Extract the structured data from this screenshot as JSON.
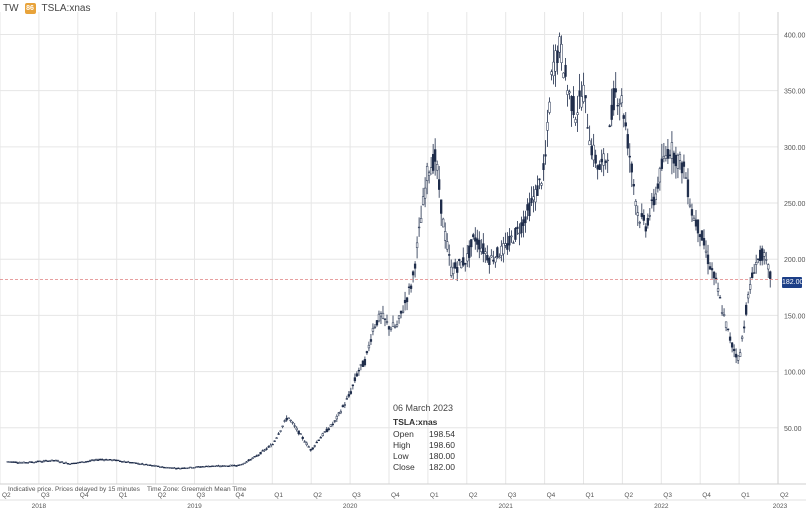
{
  "header": {
    "source": "TW",
    "badge": "86",
    "symbol": "TSLA:xnas"
  },
  "footnote": {
    "delay": "Indicative price. Prices delayed by 15 minutes",
    "timezone": "Time Zone: Greenwich Mean Time"
  },
  "tooltip": {
    "date": "06 March 2023",
    "symbol": "TSLA:xnas",
    "rows": [
      {
        "label": "Open",
        "value": "198.54"
      },
      {
        "label": "High",
        "value": "198.60"
      },
      {
        "label": "Low",
        "value": "180.00"
      },
      {
        "label": "Close",
        "value": "182.00"
      }
    ]
  },
  "last_price": "182.00",
  "colors": {
    "candle": "#1e2c4a",
    "grid": "#e6e6e6",
    "last_line": "#e08080",
    "last_tag": "#1d3f87"
  },
  "chart_data": {
    "type": "candlestick",
    "y_ticks": [
      "400.00",
      "350.00",
      "300.00",
      "250.00",
      "200.00",
      "150.00",
      "100.00",
      "50.00"
    ],
    "ylim": [
      0,
      420
    ],
    "quarter_ticks": [
      "Q2",
      "Q3",
      "Q4",
      "Q1",
      "Q2",
      "Q3",
      "Q4",
      "Q1",
      "Q2",
      "Q3",
      "Q4",
      "Q1",
      "Q2",
      "Q3",
      "Q4",
      "Q1",
      "Q2",
      "Q3",
      "Q4",
      "Q1",
      "Q2",
      "Q3",
      "Q4",
      "Q1",
      "Q"
    ],
    "year_ticks": [
      "2018",
      "2019",
      "2020",
      "2021",
      "2022",
      "2023"
    ],
    "xlim": [
      2018.25,
      2023.25
    ],
    "series": [
      {
        "values": [
          [
            2018.3,
            20
          ],
          [
            2018.4,
            19
          ],
          [
            2018.5,
            20
          ],
          [
            2018.6,
            21
          ],
          [
            2018.7,
            18
          ],
          [
            2018.8,
            20
          ],
          [
            2018.9,
            22
          ],
          [
            2019.0,
            21
          ],
          [
            2019.1,
            19
          ],
          [
            2019.2,
            17
          ],
          [
            2019.3,
            15
          ],
          [
            2019.4,
            14
          ],
          [
            2019.5,
            15
          ],
          [
            2019.6,
            16
          ],
          [
            2019.7,
            16
          ],
          [
            2019.8,
            17
          ],
          [
            2019.9,
            25
          ],
          [
            2020.0,
            35
          ],
          [
            2020.1,
            60
          ],
          [
            2020.15,
            50
          ],
          [
            2020.25,
            30
          ],
          [
            2020.3,
            40
          ],
          [
            2020.4,
            55
          ],
          [
            2020.5,
            80
          ],
          [
            2020.55,
            100
          ],
          [
            2020.6,
            110
          ],
          [
            2020.65,
            140
          ],
          [
            2020.7,
            150
          ],
          [
            2020.75,
            140
          ],
          [
            2020.8,
            140
          ],
          [
            2020.9,
            180
          ],
          [
            2020.95,
            230
          ],
          [
            2021.0,
            280
          ],
          [
            2021.05,
            290
          ],
          [
            2021.1,
            230
          ],
          [
            2021.15,
            190
          ],
          [
            2021.25,
            200
          ],
          [
            2021.3,
            220
          ],
          [
            2021.35,
            210
          ],
          [
            2021.4,
            200
          ],
          [
            2021.5,
            210
          ],
          [
            2021.6,
            230
          ],
          [
            2021.7,
            260
          ],
          [
            2021.75,
            280
          ],
          [
            2021.8,
            370
          ],
          [
            2021.85,
            390
          ],
          [
            2021.9,
            350
          ],
          [
            2021.95,
            330
          ],
          [
            2022.0,
            350
          ],
          [
            2022.05,
            300
          ],
          [
            2022.1,
            280
          ],
          [
            2022.15,
            290
          ],
          [
            2022.2,
            350
          ],
          [
            2022.25,
            340
          ],
          [
            2022.3,
            290
          ],
          [
            2022.35,
            240
          ],
          [
            2022.4,
            230
          ],
          [
            2022.45,
            250
          ],
          [
            2022.5,
            280
          ],
          [
            2022.55,
            300
          ],
          [
            2022.6,
            290
          ],
          [
            2022.65,
            280
          ],
          [
            2022.7,
            240
          ],
          [
            2022.75,
            225
          ],
          [
            2022.8,
            200
          ],
          [
            2022.85,
            180
          ],
          [
            2022.9,
            150
          ],
          [
            2022.95,
            125
          ],
          [
            2023.0,
            110
          ],
          [
            2023.05,
            160
          ],
          [
            2023.1,
            195
          ],
          [
            2023.15,
            205
          ],
          [
            2023.2,
            185
          ]
        ]
      }
    ]
  }
}
